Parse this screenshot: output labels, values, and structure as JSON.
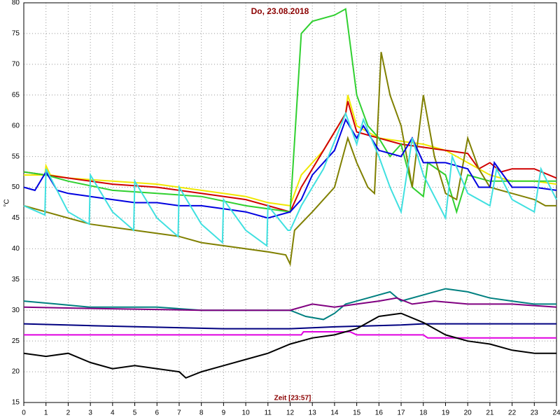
{
  "chart_data": {
    "type": "line",
    "title": "Do, 23.08.2018",
    "x_label": "Zeit [23:57]",
    "y_label": "°C",
    "xlim": [
      0,
      24
    ],
    "xticks": [
      0,
      1,
      2,
      3,
      4,
      5,
      6,
      7,
      8,
      9,
      10,
      11,
      12,
      13,
      14,
      15,
      16,
      17,
      18,
      19,
      20,
      21,
      22,
      23,
      24
    ],
    "ylim": [
      15,
      80
    ],
    "yticks": [
      15,
      20,
      25,
      30,
      35,
      40,
      45,
      50,
      55,
      60,
      65,
      70,
      75,
      80
    ],
    "grid": true,
    "series": [
      {
        "color": "#f0e800",
        "x": [
          0,
          0.95,
          1,
          1.2,
          2,
          4,
          6,
          8,
          10,
          11,
          12,
          12.5,
          13.5,
          14.5,
          14.6,
          15,
          16,
          17,
          18,
          19,
          20,
          21,
          22,
          23,
          24
        ],
        "values": [
          52,
          52,
          53.5,
          52,
          51.5,
          51,
          50.5,
          49.5,
          48.5,
          47.5,
          47,
          52,
          56,
          62,
          65,
          60,
          58,
          57.5,
          57,
          56,
          54,
          52,
          51,
          51,
          50.5
        ]
      },
      {
        "color": "#d00000",
        "x": [
          0,
          2,
          3,
          4,
          6,
          8,
          10,
          11,
          12,
          12.5,
          13.5,
          14.5,
          14.6,
          15,
          16,
          17,
          18,
          19,
          20,
          20.5,
          21,
          21.5,
          22,
          23,
          24
        ],
        "values": [
          52.5,
          51.5,
          51,
          50.5,
          50,
          49,
          48,
          47,
          46,
          50,
          56,
          62,
          64,
          59,
          58,
          57,
          56.5,
          56,
          55.5,
          53,
          54,
          52.5,
          53,
          53,
          51.5
        ]
      },
      {
        "color": "#30d030",
        "x": [
          0,
          1,
          2,
          4,
          6,
          8,
          10,
          11,
          12,
          12.5,
          13,
          14,
          14.5,
          15,
          15.5,
          16,
          16.5,
          17,
          17.5,
          18,
          18.2,
          19,
          19.5,
          20,
          21,
          22,
          23,
          24
        ],
        "values": [
          52.5,
          52,
          51,
          49.5,
          49,
          48.5,
          47,
          46.5,
          46,
          75,
          77,
          78,
          79,
          65,
          60,
          58,
          55,
          57,
          50,
          48.5,
          54,
          52,
          46,
          52,
          51,
          51,
          51,
          51
        ]
      },
      {
        "color": "#808000",
        "x": [
          0,
          1,
          2,
          3,
          4,
          5,
          6,
          7,
          8,
          9,
          10,
          11,
          11.8,
          12,
          12.2,
          13,
          14,
          14.6,
          15,
          15.5,
          15.8,
          16.1,
          16.5,
          17,
          17.5,
          18,
          18.5,
          19,
          19.5,
          20,
          20.5,
          21,
          22,
          23,
          23.5,
          24
        ],
        "values": [
          47,
          46,
          45,
          44,
          43.5,
          43,
          42.5,
          42,
          41,
          40.5,
          40,
          39.5,
          39,
          37.5,
          43,
          46,
          50,
          58,
          54,
          50,
          49,
          72,
          65,
          60,
          50,
          65,
          55,
          49,
          48,
          58,
          53,
          50,
          49,
          48,
          47,
          47
        ]
      },
      {
        "color": "#0000e0",
        "x": [
          0,
          0.5,
          1,
          1.5,
          2,
          3,
          4,
          5,
          6,
          7,
          8,
          9,
          10,
          11,
          12,
          12.5,
          13,
          14,
          14.5,
          15,
          15.3,
          16,
          17,
          17.5,
          18,
          19,
          20,
          20.5,
          21,
          21.2,
          22,
          23,
          24
        ],
        "values": [
          50,
          49.5,
          52.5,
          49.5,
          49,
          48.5,
          48,
          47.5,
          47.5,
          47,
          47,
          46.5,
          46,
          45,
          46,
          48,
          52,
          56,
          61,
          58,
          60,
          56,
          55,
          58,
          54,
          54,
          53,
          50,
          50,
          54,
          50,
          50,
          49.5
        ]
      },
      {
        "color": "#40e0e0",
        "x": [
          0,
          0.95,
          1,
          2,
          2.95,
          3,
          4,
          4.95,
          5,
          6,
          6.95,
          7,
          8,
          8.95,
          9,
          10,
          10.95,
          11,
          11.9,
          12,
          12.5,
          13.5,
          14.5,
          15,
          15.3,
          16,
          16.5,
          17,
          17.5,
          18,
          19,
          19.3,
          20,
          21,
          21.3,
          22,
          23,
          23.3,
          24
        ],
        "values": [
          47,
          45.5,
          53,
          46,
          44,
          52,
          46,
          43,
          51,
          45,
          42,
          50,
          44,
          41,
          48,
          43,
          40.5,
          47,
          43,
          43,
          47,
          53,
          62,
          57,
          61,
          55,
          50,
          46,
          58,
          52,
          45,
          55,
          49,
          47,
          53,
          48,
          46,
          53,
          48
        ]
      },
      {
        "color": "#008080",
        "x": [
          0,
          1.5,
          3,
          6,
          8,
          12,
          12.7,
          13.5,
          14,
          14.5,
          15.5,
          16.5,
          17,
          18,
          19,
          20,
          21,
          22,
          23,
          24
        ],
        "values": [
          31.5,
          31,
          30.5,
          30.5,
          30,
          30,
          29,
          28.5,
          29.5,
          31,
          32,
          33,
          31.5,
          32.5,
          33.5,
          33,
          32,
          31.5,
          31,
          31
        ]
      },
      {
        "color": "#800080",
        "x": [
          0,
          3,
          8,
          12,
          13,
          14,
          15,
          16,
          16.8,
          17.5,
          18.5,
          20,
          22,
          24
        ],
        "values": [
          30.5,
          30.3,
          30,
          30,
          31,
          30.5,
          31,
          31.5,
          32,
          31,
          31.5,
          31,
          31,
          30.5
        ]
      },
      {
        "color": "#000080",
        "x": [
          0,
          3,
          9,
          12,
          14,
          17,
          18,
          24
        ],
        "values": [
          27.8,
          27.5,
          27,
          27,
          27.3,
          27.6,
          27.8,
          27.8
        ]
      },
      {
        "color": "#e000e0",
        "x": [
          0,
          12.5,
          12.6,
          14.7,
          15,
          18,
          18.2,
          24
        ],
        "values": [
          26,
          26,
          26.5,
          26.5,
          26,
          26,
          25.5,
          25.5
        ]
      },
      {
        "color": "#000000",
        "x": [
          0,
          1,
          2,
          3,
          4,
          5,
          6,
          7,
          7.3,
          8,
          9,
          10,
          11,
          12,
          13,
          14,
          15,
          15.5,
          16,
          17,
          18,
          19,
          20,
          21,
          22,
          23,
          24
        ],
        "values": [
          23,
          22.5,
          23,
          21.5,
          20.5,
          21,
          20.5,
          20,
          19,
          20,
          21,
          22,
          23,
          24.5,
          25.5,
          26,
          27,
          28,
          29,
          29.5,
          28,
          26,
          25,
          24.5,
          23.5,
          23,
          23
        ]
      }
    ]
  }
}
